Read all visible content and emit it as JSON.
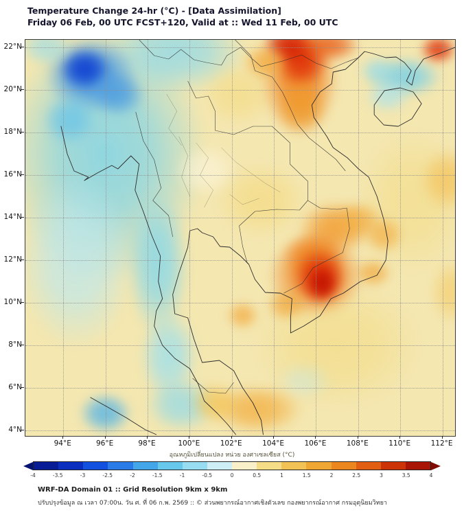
{
  "chart_data": {
    "type": "heatmap",
    "title": "Temperature Change 24-hr (°C) - [Data Assimilation]",
    "subtitle": "Friday 06 Feb, 00 UTC FCST+120, Valid at :: Wed 11 Feb, 00 UTC",
    "units": "°C",
    "grid": true,
    "lon_range": [
      92.2,
      112.6
    ],
    "lat_range": [
      3.75,
      22.35
    ],
    "xticks": [
      {
        "value": 94,
        "label": "94°E"
      },
      {
        "value": 96,
        "label": "96°E"
      },
      {
        "value": 98,
        "label": "98°E"
      },
      {
        "value": 100,
        "label": "100°E"
      },
      {
        "value": 102,
        "label": "102°E"
      },
      {
        "value": 104,
        "label": "104°E"
      },
      {
        "value": 106,
        "label": "106°E"
      },
      {
        "value": 108,
        "label": "108°E"
      },
      {
        "value": 110,
        "label": "110°E"
      },
      {
        "value": 112,
        "label": "112°E"
      }
    ],
    "yticks": [
      {
        "value": 22,
        "label": "22°N"
      },
      {
        "value": 20,
        "label": "20°N"
      },
      {
        "value": 18,
        "label": "18°N"
      },
      {
        "value": 16,
        "label": "16°N"
      },
      {
        "value": 14,
        "label": "14°N"
      },
      {
        "value": 12,
        "label": "12°N"
      },
      {
        "value": 10,
        "label": "10°N"
      },
      {
        "value": 8,
        "label": "8°N"
      },
      {
        "value": 6,
        "label": "6°N"
      },
      {
        "value": 4,
        "label": "4°N"
      }
    ],
    "base_color": "#f4e7b0",
    "base_value_c": 0.5,
    "colorbar": {
      "label": "อุณหภูมิเปลี่ยนแปลง หน่วย องศาเซลเซียส (°C)",
      "min": -4,
      "max": 4,
      "tick_labels": [
        "-4",
        "-3.5",
        "-3",
        "-2.5",
        "-2",
        "-1.5",
        "-1",
        "-0.5",
        "0",
        "0.5",
        "1",
        "1.5",
        "2",
        "2.5",
        "3",
        "3.5",
        "4"
      ],
      "segment_colors": [
        "#081c96",
        "#0a2fbf",
        "#1250e0",
        "#2a7be8",
        "#42a6e8",
        "#68c8ec",
        "#97dcf0",
        "#cdeef5",
        "#f9efc9",
        "#f5dc86",
        "#f2c255",
        "#efa633",
        "#ec861f",
        "#e25e12",
        "#cc3408",
        "#a81505"
      ],
      "left_arrow_color": "#05126e",
      "right_arrow_color": "#7e0c03"
    },
    "features": [
      {
        "name": "west-cyan-wash",
        "lon": 96.0,
        "lat": 17.0,
        "rx": 4.8,
        "ry": 6.0,
        "color": "#7ed3e8",
        "alpha": 0.85,
        "value_c": -1.5
      },
      {
        "name": "north-cyan-band",
        "lon": 99.3,
        "lat": 21.8,
        "rx": 3.4,
        "ry": 2.0,
        "color": "#8fd9ea",
        "alpha": 0.8,
        "value_c": -1
      },
      {
        "name": "west-sea-pale-cyan",
        "lon": 94.6,
        "lat": 12.0,
        "rx": 2.8,
        "ry": 4.2,
        "color": "#b9e7f0",
        "alpha": 0.75,
        "value_c": -0.5
      },
      {
        "name": "northwest-blue-halo",
        "lon": 95.3,
        "lat": 20.7,
        "rx": 2.2,
        "ry": 1.8,
        "color": "#3e8ee2",
        "alpha": 0.9,
        "value_c": -3
      },
      {
        "name": "northwest-deep-blue-core",
        "lon": 95.0,
        "lat": 21.0,
        "rx": 1.2,
        "ry": 1.0,
        "color": "#0f3fd0",
        "alpha": 0.95,
        "value_c": -4
      },
      {
        "name": "northwest-blue-secondary",
        "lon": 96.6,
        "lat": 19.8,
        "rx": 1.3,
        "ry": 1.1,
        "color": "#4a9ae0",
        "alpha": 0.8,
        "value_c": -2.5
      },
      {
        "name": "west-blue-patch",
        "lon": 94.3,
        "lat": 18.6,
        "rx": 1.3,
        "ry": 1.2,
        "color": "#69c3e8",
        "alpha": 0.8,
        "value_c": -2
      },
      {
        "name": "peninsula-cyan-band",
        "lon": 98.5,
        "lat": 11.8,
        "rx": 1.5,
        "ry": 3.4,
        "color": "#86d7ea",
        "alpha": 0.85,
        "value_c": -1.5
      },
      {
        "name": "peninsula-south-cyan",
        "lon": 99.0,
        "lat": 7.5,
        "rx": 1.4,
        "ry": 2.2,
        "color": "#9bdfee",
        "alpha": 0.8,
        "value_c": -1
      },
      {
        "name": "malaysia-cyan",
        "lon": 99.6,
        "lat": 5.2,
        "rx": 1.7,
        "ry": 1.3,
        "color": "#8fd9ea",
        "alpha": 0.75,
        "value_c": -1
      },
      {
        "name": "southwest-blue-spot",
        "lon": 96.0,
        "lat": 4.8,
        "rx": 1.3,
        "ry": 1.0,
        "color": "#55b4e6",
        "alpha": 0.85,
        "value_c": -2
      },
      {
        "name": "gulf-south-pale-cyan",
        "lon": 105.5,
        "lat": 6.4,
        "rx": 1.3,
        "ry": 0.9,
        "color": "#c5ebf2",
        "alpha": 0.6,
        "value_c": -0.5
      },
      {
        "name": "northeast-cyan-patch",
        "lon": 110.2,
        "lat": 20.6,
        "rx": 1.8,
        "ry": 1.0,
        "color": "#76cfe9",
        "alpha": 0.85,
        "value_c": -1.5
      },
      {
        "name": "northeast-cyan-small",
        "lon": 108.9,
        "lat": 20.9,
        "rx": 0.9,
        "ry": 0.7,
        "color": "#9adce9",
        "alpha": 0.7,
        "value_c": -1
      },
      {
        "name": "hainan-pale-cyan",
        "lon": 109.4,
        "lat": 19.7,
        "rx": 1.1,
        "ry": 0.8,
        "color": "#a8e2ee",
        "alpha": 0.7,
        "value_c": -0.7
      },
      {
        "name": "top-left-corner-cyan",
        "lon": 93.2,
        "lat": 22.0,
        "rx": 1.3,
        "ry": 0.9,
        "color": "#9adce9",
        "alpha": 0.7,
        "value_c": -1
      },
      {
        "name": "south-sea-warm-yellow",
        "lon": 107.0,
        "lat": 8.0,
        "rx": 4.0,
        "ry": 3.0,
        "color": "#f3d878",
        "alpha": 0.5,
        "value_c": 1
      },
      {
        "name": "east-sea-warm-yellow",
        "lon": 110.6,
        "lat": 14.8,
        "rx": 2.6,
        "ry": 3.4,
        "color": "#f3d878",
        "alpha": 0.45,
        "value_c": 1
      },
      {
        "name": "central-thailand-neutral",
        "lon": 100.8,
        "lat": 16.2,
        "rx": 1.6,
        "ry": 1.3,
        "color": "#fbf4da",
        "alpha": 0.7,
        "value_c": 0
      },
      {
        "name": "laos-warm-yellow",
        "lon": 102.3,
        "lat": 19.8,
        "rx": 1.8,
        "ry": 1.5,
        "color": "#f4d674",
        "alpha": 0.5,
        "value_c": 1
      },
      {
        "name": "central-warm-yellow",
        "lon": 103.4,
        "lat": 14.8,
        "rx": 2.2,
        "ry": 1.8,
        "color": "#f4d674",
        "alpha": 0.55,
        "value_c": 1
      },
      {
        "name": "north-vietnam-orange-band",
        "lon": 105.2,
        "lat": 20.5,
        "rx": 1.9,
        "ry": 2.7,
        "color": "#f0821e",
        "alpha": 0.9,
        "value_c": 2.5
      },
      {
        "name": "north-vietnam-red-core",
        "lon": 105.3,
        "lat": 21.4,
        "rx": 1.3,
        "ry": 1.3,
        "color": "#e03108",
        "alpha": 0.95,
        "value_c": 3.5
      },
      {
        "name": "top-edge-red",
        "lon": 104.7,
        "lat": 22.1,
        "rx": 1.3,
        "ry": 0.9,
        "color": "#d42105",
        "alpha": 0.9,
        "value_c": 4
      },
      {
        "name": "top-edge-orange-east",
        "lon": 106.6,
        "lat": 22.1,
        "rx": 1.5,
        "ry": 0.8,
        "color": "#e8560f",
        "alpha": 0.8,
        "value_c": 3
      },
      {
        "name": "band-south-orange",
        "lon": 105.3,
        "lat": 19.2,
        "rx": 1.2,
        "ry": 1.3,
        "color": "#ee9a2a",
        "alpha": 0.8,
        "value_c": 2
      },
      {
        "name": "northwest-laos-orange",
        "lon": 103.6,
        "lat": 21.3,
        "rx": 1.1,
        "ry": 0.9,
        "color": "#f2a93c",
        "alpha": 0.8,
        "value_c": 1.5
      },
      {
        "name": "northeast-corner-red",
        "lon": 111.8,
        "lat": 21.9,
        "rx": 0.9,
        "ry": 0.7,
        "color": "#e03108",
        "alpha": 0.9,
        "value_c": 3.5
      },
      {
        "name": "central-vietnam-orange",
        "lon": 106.9,
        "lat": 13.5,
        "rx": 1.8,
        "ry": 1.3,
        "color": "#f29a2e",
        "alpha": 0.85,
        "value_c": 2
      },
      {
        "name": "cambodia-orange",
        "lon": 105.9,
        "lat": 12.2,
        "rx": 1.5,
        "ry": 1.2,
        "color": "#ef8420",
        "alpha": 0.85,
        "value_c": 2.5
      },
      {
        "name": "highlands-orange",
        "lon": 108.0,
        "lat": 13.9,
        "rx": 1.2,
        "ry": 0.9,
        "color": "#f2ae40",
        "alpha": 0.75,
        "value_c": 1.5
      },
      {
        "name": "south-vietnam-orange-halo",
        "lon": 106.0,
        "lat": 11.3,
        "rx": 2.3,
        "ry": 2.0,
        "color": "#ee7d1c",
        "alpha": 0.9,
        "value_c": 3
      },
      {
        "name": "south-vietnam-red-core",
        "lon": 106.2,
        "lat": 11.2,
        "rx": 1.25,
        "ry": 1.35,
        "color": "#dc2a06",
        "alpha": 0.95,
        "value_c": 4
      },
      {
        "name": "south-vietnam-dark-red",
        "lon": 106.3,
        "lat": 10.9,
        "rx": 0.7,
        "ry": 0.8,
        "color": "#c01000",
        "alpha": 0.9,
        "value_c": 4
      },
      {
        "name": "gulf-orange-streak",
        "lon": 104.6,
        "lat": 9.9,
        "rx": 1.0,
        "ry": 0.8,
        "color": "#f0a232",
        "alpha": 0.7,
        "value_c": 1.5
      },
      {
        "name": "gulf-orange-spot",
        "lon": 102.5,
        "lat": 9.4,
        "rx": 0.8,
        "ry": 0.7,
        "color": "#f2a93c",
        "alpha": 0.75,
        "value_c": 1.5
      },
      {
        "name": "south-edge-orange",
        "lon": 103.2,
        "lat": 5.0,
        "rx": 2.2,
        "ry": 1.2,
        "color": "#f2ae40",
        "alpha": 0.8,
        "value_c": 2
      },
      {
        "name": "malay-orange",
        "lon": 101.2,
        "lat": 5.3,
        "rx": 1.2,
        "ry": 1.0,
        "color": "#f4c14e",
        "alpha": 0.7,
        "value_c": 1.5
      },
      {
        "name": "vietnam-coast-orange",
        "lon": 109.2,
        "lat": 13.2,
        "rx": 1.0,
        "ry": 0.9,
        "color": "#f2a93c",
        "alpha": 0.7,
        "value_c": 1.5
      },
      {
        "name": "vietnam-coast-orange-south",
        "lon": 108.7,
        "lat": 11.4,
        "rx": 0.9,
        "ry": 0.7,
        "color": "#f0a232",
        "alpha": 0.7,
        "value_c": 1.5
      },
      {
        "name": "east-edge-orange",
        "lon": 112.2,
        "lat": 15.8,
        "rx": 1.3,
        "ry": 1.5,
        "color": "#f3b846",
        "alpha": 0.6,
        "value_c": 1.5
      },
      {
        "name": "east-edge-orange-south",
        "lon": 112.4,
        "lat": 10.5,
        "rx": 1.0,
        "ry": 1.5,
        "color": "#f4c150",
        "alpha": 0.5,
        "value_c": 1
      }
    ]
  },
  "footer": {
    "line1": "WRF-DA Domain 01 :: Grid Resolution 9km x 9km",
    "line2": "ปรับปรุงข้อมูล ณ เวลา 07:00น. วัน ศ. ที่ 06 ก.พ. 2569 :: © ส่วนพยากรณ์อากาศเชิงตัวเลข กองพยากรณ์อากาศ กรมอุตุนิยมวิทยา"
  }
}
